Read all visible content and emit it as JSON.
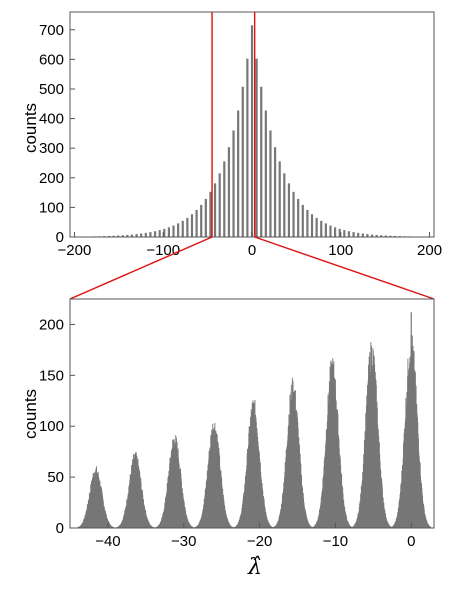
{
  "colors": {
    "bars": "#777777",
    "frame": "#555555",
    "zoom": "#dd1111"
  },
  "chart_data": [
    {
      "type": "bar",
      "title": "",
      "xlabel": "",
      "ylabel": "counts",
      "xlim": [
        -205,
        205
      ],
      "ylim": [
        0,
        760
      ],
      "xticks": [
        -200,
        -100,
        0,
        100,
        200
      ],
      "yticks": [
        0,
        100,
        200,
        300,
        400,
        500,
        600,
        700
      ],
      "xtick_labels": [
        "−200",
        "−100",
        "0",
        "100",
        "200"
      ],
      "ytick_labels": [
        "0",
        "100",
        "200",
        "300",
        "400",
        "500",
        "600",
        "700"
      ],
      "peak_spacing": 5.2,
      "peak_center": 0,
      "peak_max": 715,
      "peak_decay": 0.033,
      "zoom_range": [
        -45,
        3
      ],
      "grid": false
    },
    {
      "type": "bar",
      "title": "",
      "xlabel": "λ̂",
      "ylabel": "counts",
      "xlim": [
        -45,
        3
      ],
      "ylim": [
        0,
        225
      ],
      "xticks": [
        -40,
        -30,
        -20,
        -10,
        0
      ],
      "yticks": [
        0,
        50,
        100,
        150,
        200
      ],
      "xtick_labels": [
        "−40",
        "−30",
        "−20",
        "−10",
        "0"
      ],
      "ytick_labels": [
        "0",
        "50",
        "100",
        "150",
        "200"
      ],
      "peaks": [
        {
          "x": -41.6,
          "height": 57
        },
        {
          "x": -36.4,
          "height": 70
        },
        {
          "x": -31.2,
          "height": 87
        },
        {
          "x": -26.0,
          "height": 101
        },
        {
          "x": -20.8,
          "height": 120
        },
        {
          "x": -15.6,
          "height": 138
        },
        {
          "x": -10.4,
          "height": 158
        },
        {
          "x": -5.2,
          "height": 173
        },
        {
          "x": 0.0,
          "height": 180
        }
      ],
      "spike": {
        "x": 0,
        "height": 212
      },
      "grid": false
    }
  ]
}
